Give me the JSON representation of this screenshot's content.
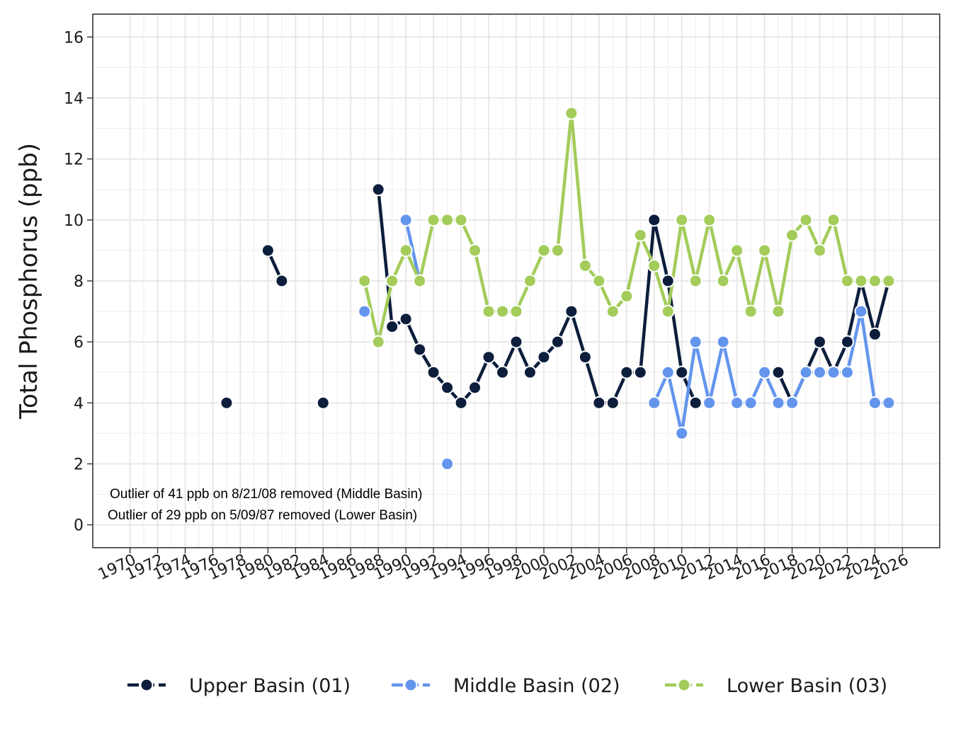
{
  "chart_data": {
    "type": "line",
    "title": "",
    "xlabel": "",
    "ylabel": "Total Phosphorus (ppb)",
    "xlim": [
      1967.3,
      2028.7
    ],
    "ylim": [
      -0.75,
      16.75
    ],
    "x_ticks": [
      1970,
      1972,
      1974,
      1976,
      1978,
      1980,
      1982,
      1984,
      1986,
      1988,
      1990,
      1992,
      1994,
      1996,
      1998,
      2000,
      2002,
      2004,
      2006,
      2008,
      2010,
      2012,
      2014,
      2016,
      2018,
      2020,
      2022,
      2024,
      2026
    ],
    "y_ticks": [
      0,
      2,
      4,
      6,
      8,
      10,
      12,
      14,
      16
    ],
    "grid": true,
    "legend_position": "bottom",
    "annotations": [
      "Outlier of 41 ppb on 8/21/08 removed (Middle Basin)",
      "Outlier of 29 ppb on 5/09/87 removed (Lower Basin)"
    ],
    "series": [
      {
        "name": "Upper Basin (01)",
        "color": "#0c1e3c",
        "points": [
          [
            1977,
            4
          ],
          [
            1980,
            9
          ],
          [
            1981,
            8
          ],
          [
            1984,
            4
          ],
          [
            1988,
            11
          ],
          [
            1989,
            6.5
          ],
          [
            1990,
            6.75
          ],
          [
            1991,
            5.75
          ],
          [
            1992,
            5
          ],
          [
            1993,
            4.5
          ],
          [
            1994,
            4
          ],
          [
            1995,
            4.5
          ],
          [
            1996,
            5.5
          ],
          [
            1997,
            5
          ],
          [
            1998,
            6
          ],
          [
            1999,
            5
          ],
          [
            2000,
            5.5
          ],
          [
            2001,
            6
          ],
          [
            2002,
            7
          ],
          [
            2003,
            5.5
          ],
          [
            2004,
            4
          ],
          [
            2005,
            4
          ],
          [
            2006,
            5
          ],
          [
            2007,
            5
          ],
          [
            2008,
            10
          ],
          [
            2009,
            8
          ],
          [
            2010,
            5
          ],
          [
            2011,
            4
          ],
          [
            2017,
            5
          ],
          [
            2018,
            4
          ],
          [
            2019,
            5
          ],
          [
            2020,
            6
          ],
          [
            2021,
            5
          ],
          [
            2022,
            6
          ],
          [
            2023,
            8
          ],
          [
            2024,
            6.25
          ],
          [
            2025,
            8
          ]
        ]
      },
      {
        "name": "Middle Basin (02)",
        "color": "#6495ed",
        "points": [
          [
            1987,
            7
          ],
          [
            1990,
            10
          ],
          [
            1991,
            8
          ],
          [
            1993,
            2
          ],
          [
            2008,
            4
          ],
          [
            2009,
            5
          ],
          [
            2010,
            3
          ],
          [
            2011,
            6
          ],
          [
            2012,
            4
          ],
          [
            2013,
            6
          ],
          [
            2014,
            4
          ],
          [
            2015,
            4
          ],
          [
            2016,
            5
          ],
          [
            2017,
            4
          ],
          [
            2018,
            4
          ],
          [
            2019,
            5
          ],
          [
            2020,
            5
          ],
          [
            2021,
            5
          ],
          [
            2022,
            5
          ],
          [
            2023,
            7
          ],
          [
            2024,
            4
          ],
          [
            2025,
            4
          ]
        ]
      },
      {
        "name": "Lower Basin (03)",
        "color": "#a3cc5a",
        "points": [
          [
            1987,
            8
          ],
          [
            1988,
            6
          ],
          [
            1989,
            8
          ],
          [
            1990,
            9
          ],
          [
            1991,
            8
          ],
          [
            1992,
            10
          ],
          [
            1993,
            10
          ],
          [
            1994,
            10
          ],
          [
            1995,
            9
          ],
          [
            1996,
            7
          ],
          [
            1997,
            7
          ],
          [
            1998,
            7
          ],
          [
            1999,
            8
          ],
          [
            2000,
            9
          ],
          [
            2001,
            9
          ],
          [
            2002,
            13.5
          ],
          [
            2003,
            8.5
          ],
          [
            2004,
            8
          ],
          [
            2005,
            7
          ],
          [
            2006,
            7.5
          ],
          [
            2007,
            9.5
          ],
          [
            2008,
            8.5
          ],
          [
            2009,
            7
          ],
          [
            2010,
            10
          ],
          [
            2011,
            8
          ],
          [
            2012,
            10
          ],
          [
            2013,
            8
          ],
          [
            2014,
            9
          ],
          [
            2015,
            7
          ],
          [
            2016,
            9
          ],
          [
            2017,
            7
          ],
          [
            2018,
            9.5
          ],
          [
            2019,
            10
          ],
          [
            2020,
            9
          ],
          [
            2021,
            10
          ],
          [
            2022,
            8
          ],
          [
            2023,
            8
          ],
          [
            2024,
            8
          ],
          [
            2025,
            8
          ]
        ]
      }
    ]
  }
}
